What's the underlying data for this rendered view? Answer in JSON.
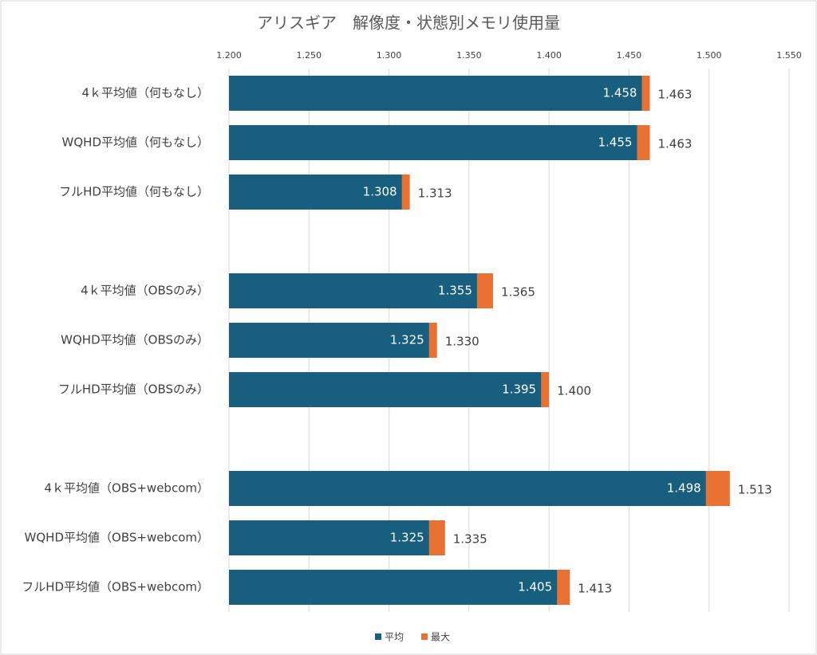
{
  "chart_data": {
    "type": "bar",
    "orientation": "horizontal",
    "overlap": true,
    "title": "アリスギア　解像度・状態別メモリ使用量",
    "categories": [
      "4ｋ平均値（何もなし）",
      "WQHD平均値（何もなし）",
      "フルHD平均値（何もなし）",
      null,
      "4ｋ平均値（OBSのみ）",
      "WQHD平均値（OBSのみ）",
      "フルHD平均値（OBSのみ）",
      null,
      "4ｋ平均値（OBS+webcom）",
      "WQHD平均値（OBS+webcom）",
      "フルHD平均値（OBS+webcom）"
    ],
    "series": [
      {
        "name": "平均",
        "color": "#175e7f",
        "values": [
          1.458,
          1.455,
          1.308,
          null,
          1.355,
          1.325,
          1.395,
          null,
          1.498,
          1.325,
          1.405
        ],
        "value_labels": [
          "1.458",
          "1.455",
          "1.308",
          null,
          "1.355",
          "1.325",
          "1.395",
          null,
          "1.498",
          "1.325",
          "1.405"
        ]
      },
      {
        "name": "最大",
        "color": "#e97132",
        "values": [
          1.463,
          1.463,
          1.313,
          null,
          1.365,
          1.33,
          1.4,
          null,
          1.513,
          1.335,
          1.413
        ],
        "value_labels": [
          "1.463",
          "1.463",
          "1.313",
          null,
          "1.365",
          "1.330",
          "1.400",
          null,
          "1.513",
          "1.335",
          "1.413"
        ]
      }
    ],
    "xlim": [
      1.2,
      1.55
    ],
    "xticks": [
      {
        "value": 1.2,
        "label": "1.200"
      },
      {
        "value": 1.25,
        "label": "1.250"
      },
      {
        "value": 1.3,
        "label": "1.300"
      },
      {
        "value": 1.35,
        "label": "1.350"
      },
      {
        "value": 1.4,
        "label": "1.400"
      },
      {
        "value": 1.45,
        "label": "1.450"
      },
      {
        "value": 1.5,
        "label": "1.500"
      },
      {
        "value": 1.55,
        "label": "1.550"
      }
    ],
    "grid": true,
    "legend": "bottom"
  }
}
